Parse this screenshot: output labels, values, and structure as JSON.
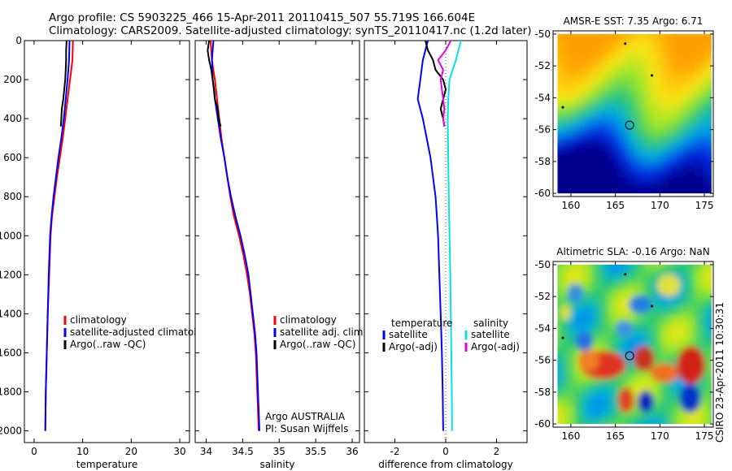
{
  "title_line1": "Argo profile: CS 5903225_466 15-Apr-2011 20110415_507 55.719S 166.604E",
  "title_line2": "Climatology: CARS2009. Satellite-adjusted climatology: synTS_20110417.nc (1.2d later)",
  "credit": "CSIRO 23-Apr-2011 10:30:31",
  "colors": {
    "climatology": "#ff0000",
    "satellite": "#0000ff",
    "argo": "#000000",
    "sal_satellite": "#00e5e5",
    "sal_argo": "#e600e6",
    "zero_line": "#555555"
  },
  "chart_data": [
    {
      "type": "line",
      "xlabel": "temperature",
      "ylabel": "",
      "xlim": [
        -2,
        32
      ],
      "ylim": [
        2060,
        0
      ],
      "y_inverted": true,
      "xticks": [
        0,
        10,
        20,
        30
      ],
      "yticks": [
        0,
        200,
        400,
        600,
        800,
        1000,
        1200,
        1400,
        1600,
        1800,
        2000
      ],
      "legend": [
        "climatology",
        "satellite-adjusted climatology",
        "Argo(..raw -QC)"
      ],
      "series": [
        {
          "name": "climatology",
          "color": "#ff0000",
          "points": [
            [
              8,
              0
            ],
            [
              7.9,
              100
            ],
            [
              7.4,
              200
            ],
            [
              6.9,
              300
            ],
            [
              6.4,
              400
            ],
            [
              5.9,
              500
            ],
            [
              5.3,
              600
            ],
            [
              4.7,
              700
            ],
            [
              4.2,
              800
            ],
            [
              3.7,
              900
            ],
            [
              3.4,
              1000
            ],
            [
              3.1,
              1200
            ],
            [
              2.8,
              1400
            ],
            [
              2.6,
              1600
            ],
            [
              2.4,
              1800
            ],
            [
              2.3,
              2000
            ]
          ]
        },
        {
          "name": "satellite-adjusted climatology",
          "color": "#0000ff",
          "points": [
            [
              7.3,
              0
            ],
            [
              7.2,
              100
            ],
            [
              6.9,
              200
            ],
            [
              6.5,
              300
            ],
            [
              6.1,
              400
            ],
            [
              5.6,
              500
            ],
            [
              5.0,
              600
            ],
            [
              4.5,
              700
            ],
            [
              4.0,
              800
            ],
            [
              3.6,
              900
            ],
            [
              3.3,
              1000
            ],
            [
              3.0,
              1200
            ],
            [
              2.8,
              1400
            ],
            [
              2.6,
              1600
            ],
            [
              2.4,
              1800
            ],
            [
              2.3,
              2000
            ]
          ]
        },
        {
          "name": "Argo(..raw -QC)",
          "color": "#000000",
          "points": [
            [
              6.7,
              0
            ],
            [
              6.6,
              50
            ],
            [
              6.6,
              100
            ],
            [
              6.5,
              150
            ],
            [
              6.4,
              200
            ],
            [
              6.2,
              250
            ],
            [
              6.0,
              300
            ],
            [
              5.7,
              350
            ],
            [
              5.6,
              400
            ],
            [
              5.5,
              440
            ]
          ]
        }
      ]
    },
    {
      "type": "line",
      "xlabel": "salinity",
      "ylabel": "",
      "xlim": [
        33.85,
        36.1
      ],
      "ylim": [
        2060,
        0
      ],
      "y_inverted": true,
      "xticks": [
        34,
        34.5,
        35,
        35.5,
        36
      ],
      "legend": [
        "climatology",
        "satellite adj. clim.",
        "Argo(..raw -QC)"
      ],
      "annotations": [
        "Argo AUSTRALIA",
        "PI: Susan Wijffels"
      ],
      "series": [
        {
          "name": "climatology",
          "color": "#ff0000",
          "points": [
            [
              34.06,
              0
            ],
            [
              34.08,
              100
            ],
            [
              34.12,
              200
            ],
            [
              34.15,
              300
            ],
            [
              34.18,
              400
            ],
            [
              34.21,
              500
            ],
            [
              34.25,
              600
            ],
            [
              34.29,
              700
            ],
            [
              34.33,
              800
            ],
            [
              34.38,
              900
            ],
            [
              34.45,
              1000
            ],
            [
              34.51,
              1100
            ],
            [
              34.56,
              1200
            ],
            [
              34.6,
              1300
            ],
            [
              34.63,
              1400
            ],
            [
              34.66,
              1500
            ],
            [
              34.68,
              1600
            ],
            [
              34.7,
              1800
            ],
            [
              34.72,
              2000
            ]
          ]
        },
        {
          "name": "satellite adj. clim.",
          "color": "#0000ff",
          "points": [
            [
              34.1,
              0
            ],
            [
              34.08,
              100
            ],
            [
              34.09,
              200
            ],
            [
              34.12,
              300
            ],
            [
              34.16,
              400
            ],
            [
              34.2,
              500
            ],
            [
              34.25,
              600
            ],
            [
              34.29,
              700
            ],
            [
              34.34,
              800
            ],
            [
              34.4,
              900
            ],
            [
              34.47,
              1000
            ],
            [
              34.53,
              1100
            ],
            [
              34.58,
              1200
            ],
            [
              34.61,
              1300
            ],
            [
              34.64,
              1400
            ],
            [
              34.67,
              1500
            ],
            [
              34.69,
              1600
            ],
            [
              34.71,
              1800
            ],
            [
              34.73,
              2000
            ]
          ]
        },
        {
          "name": "Argo(..raw -QC)",
          "color": "#000000",
          "points": [
            [
              34.04,
              0
            ],
            [
              34.02,
              50
            ],
            [
              34.04,
              100
            ],
            [
              34.07,
              150
            ],
            [
              34.09,
              200
            ],
            [
              34.11,
              250
            ],
            [
              34.12,
              300
            ],
            [
              34.16,
              350
            ],
            [
              34.17,
              400
            ],
            [
              34.2,
              440
            ]
          ]
        }
      ]
    },
    {
      "type": "line",
      "xlabel": "difference from climatology",
      "ylabel": "",
      "xlim": [
        -3.2,
        3.2
      ],
      "ylim": [
        2060,
        0
      ],
      "y_inverted": true,
      "xticks": [
        -2,
        0,
        2
      ],
      "legend_groups": [
        {
          "heading": "temperature",
          "items": [
            "satellite",
            "Argo(-adj)"
          ]
        },
        {
          "heading": "salinity",
          "items": [
            "satellite",
            "Argo(-adj)"
          ]
        }
      ],
      "series": [
        {
          "name": "temperature satellite",
          "color": "#0000ff",
          "points": [
            [
              -0.7,
              0
            ],
            [
              -0.8,
              50
            ],
            [
              -0.9,
              100
            ],
            [
              -1.0,
              200
            ],
            [
              -1.1,
              300
            ],
            [
              -0.9,
              400
            ],
            [
              -0.75,
              500
            ],
            [
              -0.6,
              600
            ],
            [
              -0.5,
              700
            ],
            [
              -0.4,
              800
            ],
            [
              -0.35,
              900
            ],
            [
              -0.3,
              1000
            ],
            [
              -0.25,
              1200
            ],
            [
              -0.2,
              1400
            ],
            [
              -0.15,
              1600
            ],
            [
              -0.12,
              1800
            ],
            [
              -0.1,
              2000
            ]
          ]
        },
        {
          "name": "temperature Argo(-adj)",
          "color": "#000000",
          "points": [
            [
              -0.8,
              0
            ],
            [
              -0.7,
              50
            ],
            [
              -0.5,
              100
            ],
            [
              -0.4,
              150
            ],
            [
              -0.1,
              200
            ],
            [
              0.0,
              250
            ],
            [
              -0.1,
              300
            ],
            [
              -0.2,
              350
            ],
            [
              -0.1,
              400
            ],
            [
              -0.05,
              440
            ]
          ]
        },
        {
          "name": "salinity satellite",
          "color": "#00e5e5",
          "points": [
            [
              0.6,
              0
            ],
            [
              0.4,
              100
            ],
            [
              0.15,
              200
            ],
            [
              0.1,
              300
            ],
            [
              0.08,
              400
            ],
            [
              0.1,
              600
            ],
            [
              0.12,
              800
            ],
            [
              0.15,
              1000
            ],
            [
              0.18,
              1200
            ],
            [
              0.2,
              1400
            ],
            [
              0.22,
              1600
            ],
            [
              0.24,
              1800
            ],
            [
              0.25,
              2000
            ]
          ]
        },
        {
          "name": "salinity Argo(-adj)",
          "color": "#e600e6",
          "points": [
            [
              0.2,
              0
            ],
            [
              0.0,
              50
            ],
            [
              -0.3,
              100
            ],
            [
              -0.1,
              150
            ],
            [
              -0.2,
              200
            ],
            [
              -0.15,
              250
            ],
            [
              -0.1,
              300
            ],
            [
              -0.05,
              350
            ],
            [
              -0.1,
              400
            ],
            [
              -0.05,
              440
            ]
          ]
        }
      ]
    },
    {
      "type": "heatmap",
      "title": "AMSR-E SST: 7.35 Argo: 6.71",
      "xlim": [
        158,
        176
      ],
      "ylim": [
        -60.2,
        -49.8
      ],
      "xticks": [
        160,
        165,
        170,
        175
      ],
      "yticks": [
        -50,
        -52,
        -54,
        -56,
        -58,
        -60
      ],
      "float_position": [
        166.6,
        -55.72
      ]
    },
    {
      "type": "heatmap",
      "title": "Altimetric SLA: -0.16 Argo: NaN",
      "xlim": [
        158,
        176
      ],
      "ylim": [
        -60.2,
        -49.8
      ],
      "xticks": [
        160,
        165,
        170,
        175
      ],
      "yticks": [
        -50,
        -52,
        -54,
        -56,
        -58,
        -60
      ],
      "float_position": [
        166.6,
        -55.72
      ]
    }
  ]
}
